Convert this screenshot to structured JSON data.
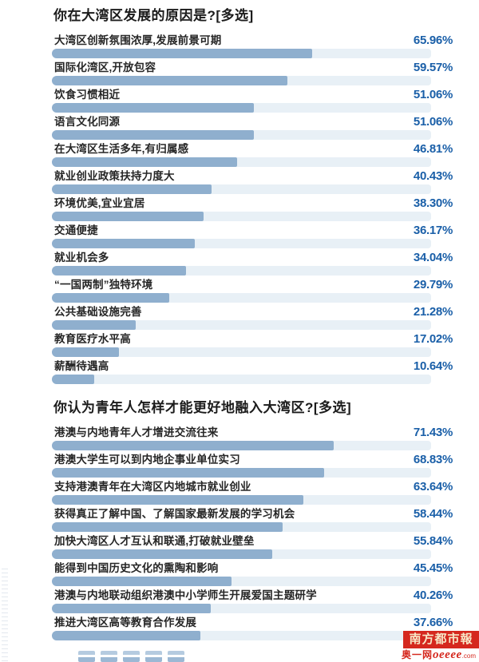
{
  "colors": {
    "bar": "#8fafce",
    "track": "#e8f0f6",
    "percent_text": "#1a5fa8",
    "label_text": "#262626",
    "title_text": "#1b1b1b",
    "logo_red": "#d5281e",
    "logo_text": "#f7e8c8"
  },
  "chart_data": [
    {
      "type": "bar",
      "orientation": "horizontal",
      "title": "你在大湾区发展的原因是?[多选]",
      "categories": [
        "大湾区创新氛围浓厚,发展前景可期",
        "国际化湾区,开放包容",
        "饮食习惯相近",
        "语言文化同源",
        "在大湾区生活多年,有归属感",
        "就业创业政策扶持力度大",
        "环境优美,宜业宜居",
        "交通便捷",
        "就业机会多",
        "“一国两制”独特环境",
        "公共基础设施完善",
        "教育医疗水平高",
        "薪酬待遇高"
      ],
      "values": [
        65.96,
        59.57,
        51.06,
        51.06,
        46.81,
        40.43,
        38.3,
        36.17,
        34.04,
        29.79,
        21.28,
        17.02,
        10.64
      ],
      "value_labels": [
        "65.96%",
        "59.57%",
        "51.06%",
        "51.06%",
        "46.81%",
        "40.43%",
        "38.30%",
        "36.17%",
        "34.04%",
        "29.79%",
        "21.28%",
        "17.02%",
        "10.64%"
      ],
      "unit": "%",
      "xlim": [
        0,
        100
      ],
      "track_max_percent": 96,
      "grid": false,
      "legend": false,
      "bar_color": "#8fafce",
      "track_color": "#e8f0f6"
    },
    {
      "type": "bar",
      "orientation": "horizontal",
      "title": "你认为青年人怎样才能更好地融入大湾区?[多选]",
      "categories": [
        "港澳与内地青年人才增进交流往来",
        "港澳大学生可以到内地企事业单位实习",
        "支持港澳青年在大湾区内地城市就业创业",
        "获得真正了解中国、了解国家最新发展的学习机会",
        "加快大湾区人才互认和联通,打破就业壁垒",
        "能得到中国历史文化的熏陶和影响",
        "港澳与内地联动组织港澳中小学师生开展爱国主题研学",
        "推进大湾区高等教育合作发展"
      ],
      "values": [
        71.43,
        68.83,
        63.64,
        58.44,
        55.84,
        45.45,
        40.26,
        37.66
      ],
      "value_labels": [
        "71.43%",
        "68.83%",
        "63.64%",
        "58.44%",
        "55.84%",
        "45.45%",
        "40.26%",
        "37.66%"
      ],
      "unit": "%",
      "xlim": [
        0,
        100
      ],
      "track_max_percent": 96,
      "grid": false,
      "legend": false,
      "bar_color": "#8fafce",
      "track_color": "#e8f0f6"
    }
  ],
  "footer": {
    "newspaper_name": "南方都市報",
    "site_cn": "奥一网",
    "site_en": "oeeee",
    "site_suffix": ".com"
  }
}
